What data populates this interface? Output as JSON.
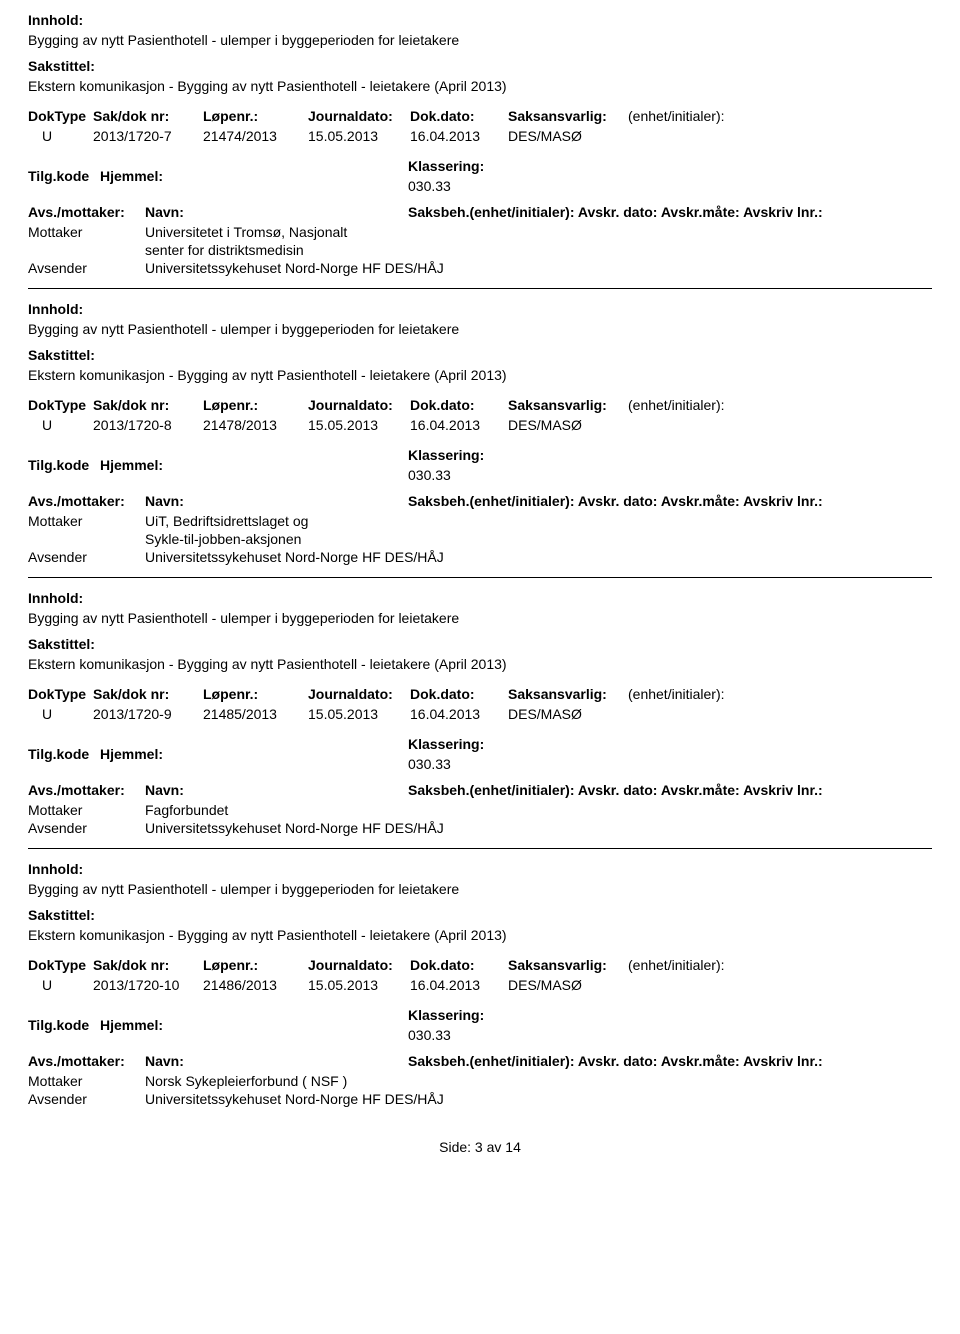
{
  "labels": {
    "innhold": "Innhold:",
    "sakstittel": "Sakstittel:",
    "doktype": "DokType",
    "sakdok": "Sak/dok nr:",
    "lopenr": "Løpenr.:",
    "journaldato": "Journaldato:",
    "dokdato": "Dok.dato:",
    "saksansvarlig": "Saksansvarlig:",
    "enhet": "(enhet/initialer):",
    "tilgkode": "Tilg.kode",
    "hjemmel": "Hjemmel:",
    "klassering": "Klassering:",
    "avsmottaker": "Avs./mottaker:",
    "navn": "Navn:",
    "saksbeh": "Saksbeh.(enhet/initialer): Avskr. dato:  Avskr.måte:  Avskriv lnr.:",
    "mottaker": "Mottaker",
    "avsender": "Avsender"
  },
  "entries": [
    {
      "innhold_text": "Bygging av nytt Pasienthotell - ulemper i byggeperioden for leietakere",
      "sakstittel_text": "Ekstern komunikasjon - Bygging av nytt Pasienthotell - leietakere (April 2013)",
      "doktype": "U",
      "sakdok": "2013/1720-7",
      "lopenr": "21474/2013",
      "journaldato": "15.05.2013",
      "dokdato": "16.04.2013",
      "saksansvarlig": "DES/MASØ",
      "klassering_val": "030.33",
      "mottaker_val": "Universitetet i Tromsø, Nasjonalt",
      "mottaker_val2": "senter for distriktsmedisin",
      "avsender_val": "Universitetssykehuset Nord-Norge HF  DES/HÅJ"
    },
    {
      "innhold_text": "Bygging av nytt Pasienthotell - ulemper i byggeperioden for leietakere",
      "sakstittel_text": "Ekstern komunikasjon - Bygging av nytt Pasienthotell - leietakere (April 2013)",
      "doktype": "U",
      "sakdok": "2013/1720-8",
      "lopenr": "21478/2013",
      "journaldato": "15.05.2013",
      "dokdato": "16.04.2013",
      "saksansvarlig": "DES/MASØ",
      "klassering_val": "030.33",
      "mottaker_val": "UiT, Bedriftsidrettslaget og",
      "mottaker_val2": "Sykle-til-jobben-aksjonen",
      "avsender_val": "Universitetssykehuset Nord-Norge HF  DES/HÅJ"
    },
    {
      "innhold_text": "Bygging av nytt Pasienthotell - ulemper i byggeperioden for leietakere",
      "sakstittel_text": "Ekstern komunikasjon - Bygging av nytt Pasienthotell - leietakere (April 2013)",
      "doktype": "U",
      "sakdok": "2013/1720-9",
      "lopenr": "21485/2013",
      "journaldato": "15.05.2013",
      "dokdato": "16.04.2013",
      "saksansvarlig": "DES/MASØ",
      "klassering_val": "030.33",
      "mottaker_val": "Fagforbundet",
      "mottaker_val2": "",
      "avsender_val": "Universitetssykehuset Nord-Norge HF  DES/HÅJ"
    },
    {
      "innhold_text": "Bygging av nytt Pasienthotell - ulemper i byggeperioden for leietakere",
      "sakstittel_text": "Ekstern komunikasjon - Bygging av nytt Pasienthotell - leietakere (April 2013)",
      "doktype": "U",
      "sakdok": "2013/1720-10",
      "lopenr": "21486/2013",
      "journaldato": "15.05.2013",
      "dokdato": "16.04.2013",
      "saksansvarlig": "DES/MASØ",
      "klassering_val": "030.33",
      "mottaker_val": "Norsk Sykepleierforbund ( NSF )",
      "mottaker_val2": "",
      "avsender_val": "Universitetssykehuset Nord-Norge HF  DES/HÅJ"
    }
  ],
  "footer": "Side: 3 av 14"
}
